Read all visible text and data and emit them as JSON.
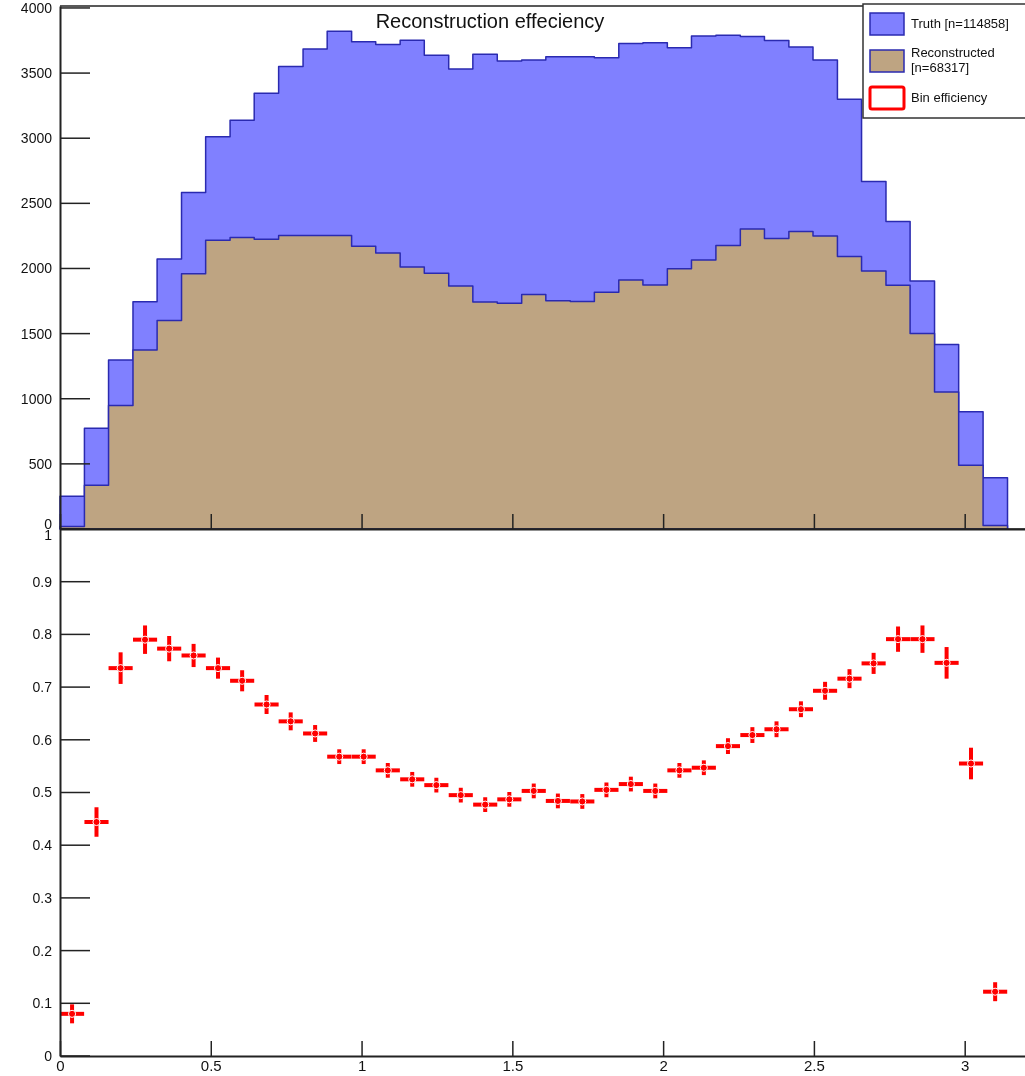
{
  "chart_data": [
    {
      "type": "histogram",
      "title": "Reconstruction effeciency",
      "bins": [
        0,
        0.081,
        0.161,
        0.242,
        0.322,
        0.403,
        0.483,
        0.564,
        0.644,
        0.725,
        0.806,
        0.886,
        0.967,
        1.047,
        1.128,
        1.208,
        1.289,
        1.369,
        1.45,
        1.531,
        1.611,
        1.692,
        1.772,
        1.853,
        1.933,
        2.014,
        2.094,
        2.175,
        2.256,
        2.336,
        2.417,
        2.497,
        2.578,
        2.658,
        2.739,
        2.819,
        2.9,
        2.98,
        3.061,
        3.142
      ],
      "series": [
        {
          "name": "Truth [n=114858]",
          "color": "#8080ff",
          "values": [
            251,
            773,
            1297,
            1744,
            2073,
            2584,
            3012,
            3137,
            3346,
            3550,
            3685,
            3822,
            3740,
            3719,
            3753,
            3637,
            3531,
            3645,
            3592,
            3600,
            3626,
            3626,
            3618,
            3727,
            3732,
            3695,
            3785,
            3790,
            3780,
            3750,
            3700,
            3600,
            3300,
            2668,
            2361,
            1903,
            1416,
            900,
            394
          ]
        },
        {
          "name": "Reconstructed [n=68317]",
          "color": "#bea482",
          "values": [
            20,
            336,
            948,
            1374,
            1601,
            1959,
            2216,
            2237,
            2224,
            2253,
            2253,
            2253,
            2171,
            2118,
            2012,
            1964,
            1866,
            1742,
            1734,
            1800,
            1752,
            1747,
            1818,
            1911,
            1874,
            1998,
            2065,
            2176,
            2303,
            2231,
            2284,
            2250,
            2091,
            1980,
            1871,
            1501,
            1051,
            490,
            26
          ]
        }
      ],
      "xlim": [
        0,
        3.2
      ],
      "xticks": [
        0,
        0.5,
        1,
        1.5,
        2,
        2.5,
        3
      ],
      "ylim": [
        0,
        4015
      ],
      "yticks": [
        0,
        500,
        1000,
        1500,
        2000,
        2500,
        3000,
        3500,
        4000
      ],
      "tick_labels": "y",
      "legend": "top right"
    },
    {
      "type": "scatter",
      "x": [
        0.04,
        0.121,
        0.201,
        0.282,
        0.362,
        0.443,
        0.524,
        0.604,
        0.685,
        0.765,
        0.846,
        0.926,
        1.007,
        1.087,
        1.168,
        1.248,
        1.329,
        1.41,
        1.49,
        1.571,
        1.651,
        1.732,
        1.812,
        1.893,
        1.974,
        2.054,
        2.135,
        2.215,
        2.296,
        2.376,
        2.457,
        2.537,
        2.618,
        2.698,
        2.779,
        2.86,
        2.94,
        3.021,
        3.101
      ],
      "series": [
        {
          "name": "Bin efficiency",
          "color": "#ff0000",
          "values": [
            0.08,
            0.444,
            0.736,
            0.79,
            0.773,
            0.76,
            0.736,
            0.712,
            0.667,
            0.635,
            0.612,
            0.568,
            0.568,
            0.542,
            0.525,
            0.514,
            0.495,
            0.477,
            0.487,
            0.503,
            0.484,
            0.483,
            0.505,
            0.516,
            0.503,
            0.542,
            0.547,
            0.588,
            0.609,
            0.62,
            0.658,
            0.693,
            0.716,
            0.745,
            0.791,
            0.791,
            0.746,
            0.555,
            0.122
          ],
          "errors": [
            0.018,
            0.028,
            0.03,
            0.027,
            0.024,
            0.022,
            0.02,
            0.02,
            0.018,
            0.017,
            0.016,
            0.014,
            0.014,
            0.014,
            0.014,
            0.014,
            0.014,
            0.014,
            0.014,
            0.014,
            0.014,
            0.014,
            0.014,
            0.014,
            0.014,
            0.014,
            0.014,
            0.015,
            0.015,
            0.015,
            0.015,
            0.017,
            0.018,
            0.02,
            0.024,
            0.026,
            0.03,
            0.03,
            0.018
          ],
          "xerrors": [
            0.04,
            0.04,
            0.04,
            0.04,
            0.04,
            0.04,
            0.04,
            0.04,
            0.04,
            0.04,
            0.04,
            0.04,
            0.04,
            0.04,
            0.04,
            0.04,
            0.04,
            0.04,
            0.04,
            0.04,
            0.04,
            0.04,
            0.04,
            0.04,
            0.04,
            0.04,
            0.04,
            0.04,
            0.04,
            0.04,
            0.04,
            0.04,
            0.04,
            0.04,
            0.04,
            0.04,
            0.04,
            0.04,
            0.04
          ]
        }
      ],
      "xlim": [
        0,
        3.2
      ],
      "xticks": [
        0,
        0.5,
        1,
        1.5,
        2,
        2.5,
        3
      ],
      "ylim": [
        0,
        1
      ],
      "yticks": [
        0,
        0.1,
        0.2,
        0.3,
        0.4,
        0.5,
        0.6,
        0.7,
        0.8,
        0.9,
        1
      ],
      "marker": "circle",
      "legend": "top right"
    }
  ]
}
